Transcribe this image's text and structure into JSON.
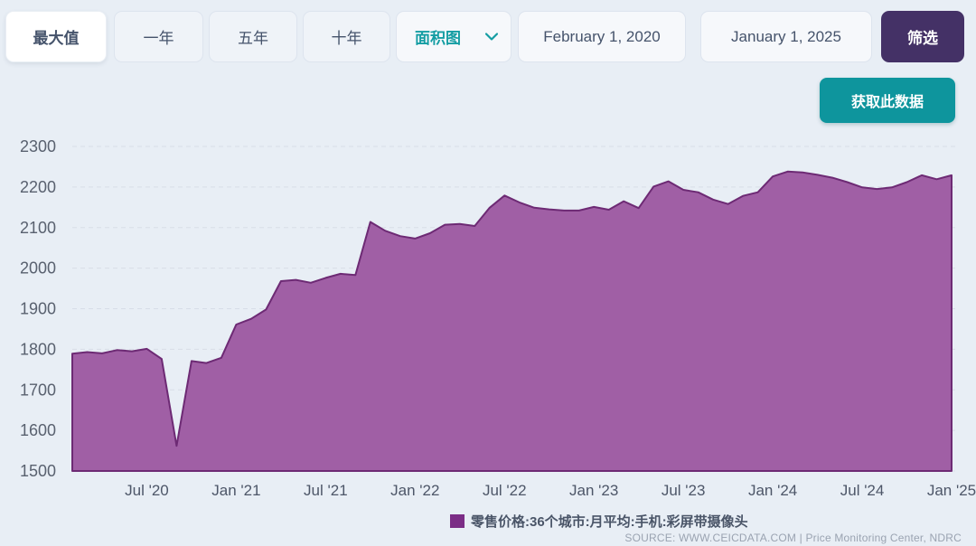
{
  "toolbar": {
    "range_buttons": [
      {
        "label": "最大值",
        "selected": true
      },
      {
        "label": "一年",
        "selected": false
      },
      {
        "label": "五年",
        "selected": false
      },
      {
        "label": "十年",
        "selected": false
      }
    ],
    "chart_type_dropdown": {
      "value": "面积图"
    },
    "start_date": "February 1, 2020",
    "end_date": "January 1, 2025",
    "filter_label": "筛选",
    "get_data_label": "获取此数据"
  },
  "footer": {
    "legend_label": "零售价格:36个城市:月平均:手机:彩屏带摄像头",
    "source_text": "SOURCE: WWW.CEICDATA.COM | Price Monitoring Center, NDRC"
  },
  "chart_data": {
    "type": "area",
    "title": "",
    "xlabel": "",
    "ylabel": "",
    "series_name": "零售价格:36个城市:月平均:手机:彩屏带摄像头",
    "ylim": [
      1500,
      2300
    ],
    "y_ticks": [
      1500,
      1600,
      1700,
      1800,
      1900,
      2000,
      2100,
      2200,
      2300
    ],
    "x_tick_labels": [
      "Jul '20",
      "Jan '21",
      "Jul '21",
      "Jan '22",
      "Jul '22",
      "Jan '23",
      "Jul '23",
      "Jan '24",
      "Jul '24",
      "Jan '25"
    ],
    "x_tick_month_indices": [
      5,
      11,
      17,
      23,
      29,
      35,
      41,
      47,
      53,
      59
    ],
    "grid": "horizontal-dashed",
    "legend_position": "bottom-center",
    "months": [
      "2020-02",
      "2020-03",
      "2020-04",
      "2020-05",
      "2020-06",
      "2020-07",
      "2020-08",
      "2020-09",
      "2020-10",
      "2020-11",
      "2020-12",
      "2021-01",
      "2021-02",
      "2021-03",
      "2021-04",
      "2021-05",
      "2021-06",
      "2021-07",
      "2021-08",
      "2021-09",
      "2021-10",
      "2021-11",
      "2021-12",
      "2022-01",
      "2022-02",
      "2022-03",
      "2022-04",
      "2022-05",
      "2022-06",
      "2022-07",
      "2022-08",
      "2022-09",
      "2022-10",
      "2022-11",
      "2022-12",
      "2023-01",
      "2023-02",
      "2023-03",
      "2023-04",
      "2023-05",
      "2023-06",
      "2023-07",
      "2023-08",
      "2023-09",
      "2023-10",
      "2023-11",
      "2023-12",
      "2024-01",
      "2024-02",
      "2024-03",
      "2024-04",
      "2024-05",
      "2024-06",
      "2024-07",
      "2024-08",
      "2024-09",
      "2024-10",
      "2024-11",
      "2024-12",
      "2025-01"
    ],
    "values": [
      1789,
      1793,
      1790,
      1798,
      1795,
      1801,
      1776,
      1562,
      1771,
      1766,
      1779,
      1861,
      1875,
      1898,
      1968,
      1971,
      1964,
      1976,
      1986,
      1983,
      2114,
      2092,
      2079,
      2073,
      2086,
      2107,
      2109,
      2104,
      2149,
      2179,
      2162,
      2149,
      2145,
      2142,
      2142,
      2151,
      2144,
      2165,
      2148,
      2201,
      2214,
      2193,
      2187,
      2169,
      2158,
      2178,
      2187,
      2226,
      2238,
      2236,
      2230,
      2223,
      2212,
      2199,
      2195,
      2199,
      2212,
      2229,
      2219,
      2229
    ],
    "colors": {
      "area_fill": "#a05fa5",
      "area_stroke": "#6d2a74",
      "legend_swatch": "#7b2d86",
      "gridline": "#d7dde7",
      "y_tick_text": "#59616f",
      "x_tick_text": "#4d5668",
      "accent_teal": "#149da3",
      "filter_purple": "#443166"
    }
  }
}
